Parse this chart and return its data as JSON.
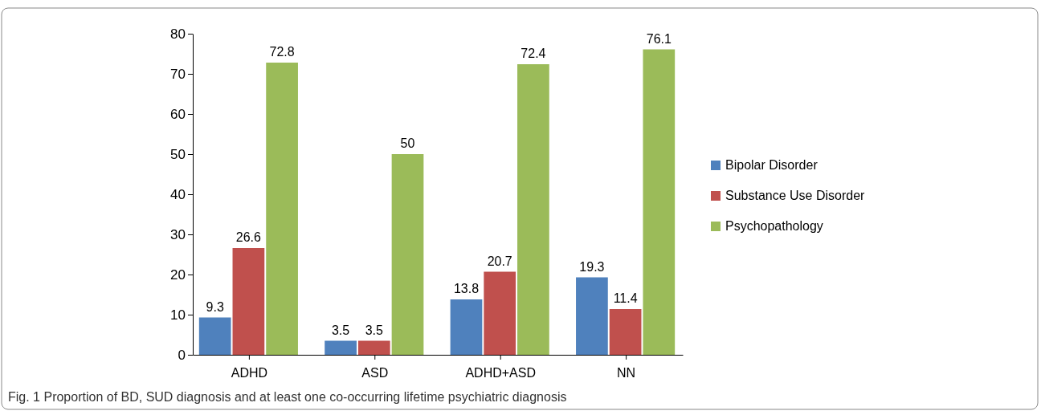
{
  "chart_data": {
    "type": "bar",
    "categories": [
      "ADHD",
      "ASD",
      "ADHD+ASD",
      "NN"
    ],
    "series": [
      {
        "name": "Bipolar Disorder",
        "color": "#4f81bd",
        "values": [
          9.3,
          3.5,
          13.8,
          19.3
        ]
      },
      {
        "name": "Substance Use Disorder",
        "color": "#c0504d",
        "values": [
          26.6,
          3.5,
          20.7,
          11.4
        ]
      },
      {
        "name": "Psychopathology",
        "color": "#9bbb59",
        "values": [
          72.8,
          50,
          72.4,
          76.1
        ]
      }
    ],
    "ylim": [
      0,
      80
    ],
    "yticks": [
      0,
      10,
      20,
      30,
      40,
      50,
      60,
      70,
      80
    ],
    "data_labels": true,
    "legend": "right",
    "annotations": [
      "Fig. 1 Proportion of BD, SUD diagnosis and at least one co-occurring lifetime psychiatric diagnosis"
    ]
  }
}
